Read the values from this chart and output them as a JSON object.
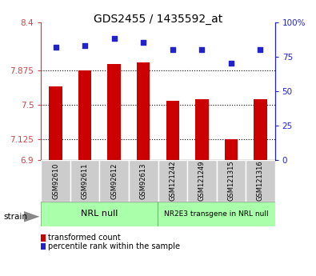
{
  "title": "GDS2455 / 1435592_at",
  "samples": [
    "GSM92610",
    "GSM92611",
    "GSM92612",
    "GSM92613",
    "GSM121242",
    "GSM121249",
    "GSM121315",
    "GSM121316"
  ],
  "bar_values": [
    7.7,
    7.875,
    7.94,
    7.96,
    7.54,
    7.56,
    7.13,
    7.56
  ],
  "percentile_values": [
    82,
    83,
    88,
    85,
    80,
    80,
    70,
    80
  ],
  "ylim_left": [
    6.9,
    8.4
  ],
  "ylim_right": [
    0,
    100
  ],
  "yticks_left": [
    6.9,
    7.125,
    7.5,
    7.875,
    8.4
  ],
  "yticks_right": [
    0,
    25,
    50,
    75,
    100
  ],
  "ytick_labels_left": [
    "6.9",
    "7.125",
    "7.5",
    "7.875",
    "8.4"
  ],
  "ytick_labels_right": [
    "0",
    "25",
    "50",
    "75",
    "100%"
  ],
  "dotted_lines": [
    7.875,
    7.5,
    7.125
  ],
  "bar_color": "#cc0000",
  "dot_color": "#2222cc",
  "group1_label": "NRL null",
  "group2_label": "NR2E3 transgene in NRL null",
  "group_color": "#aaffaa",
  "sample_bg_color": "#cccccc",
  "legend_bar_label": "transformed count",
  "legend_dot_label": "percentile rank within the sample",
  "strain_label": "strain",
  "bar_bottom": 6.9,
  "axis_color_left": "#cc4444",
  "axis_color_right": "#2222cc",
  "bar_width": 0.45
}
